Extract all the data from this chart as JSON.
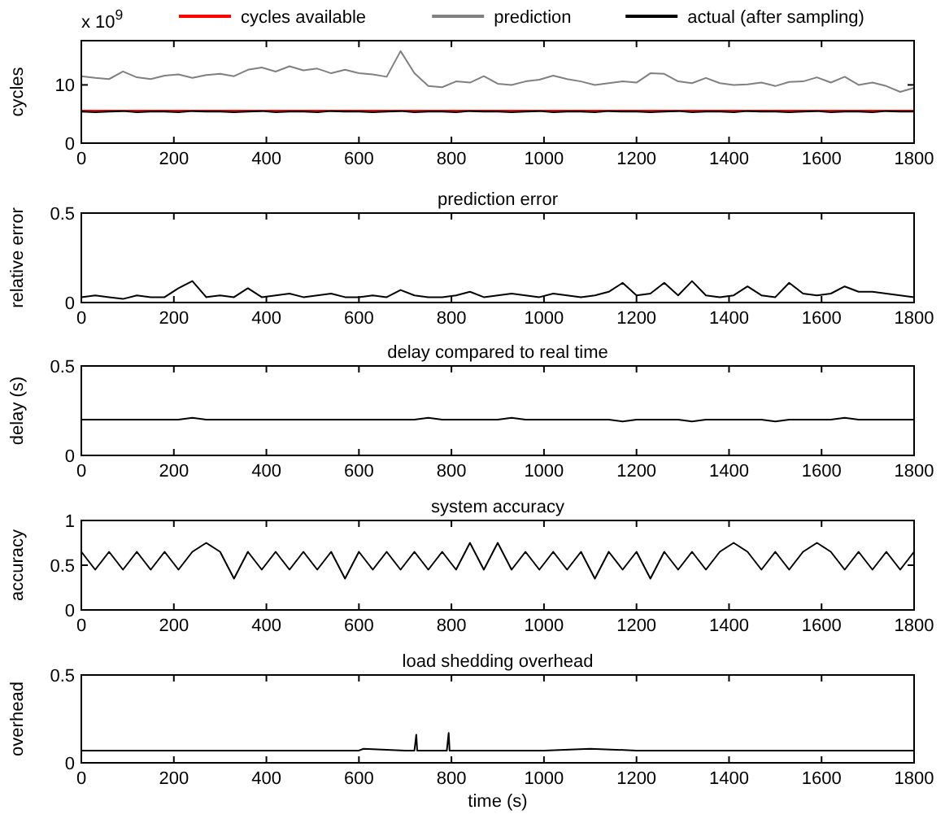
{
  "chart_data": [
    {
      "type": "line",
      "ylabel": "cycles",
      "annotations": [
        "x 10$^{9}$"
      ],
      "legend": "top",
      "xlim": [
        0,
        1800
      ],
      "xticks": [
        0,
        200,
        400,
        600,
        800,
        1000,
        1200,
        1400,
        1600,
        1800
      ],
      "ylim": [
        0,
        17.6
      ],
      "yticks": [
        0,
        10
      ],
      "x": [
        0,
        30,
        60,
        90,
        120,
        150,
        180,
        210,
        240,
        270,
        300,
        330,
        360,
        390,
        420,
        450,
        480,
        510,
        540,
        570,
        600,
        630,
        660,
        690,
        720,
        750,
        780,
        810,
        840,
        870,
        900,
        930,
        960,
        990,
        1020,
        1050,
        1080,
        1110,
        1140,
        1170,
        1200,
        1230,
        1260,
        1290,
        1320,
        1350,
        1380,
        1410,
        1440,
        1470,
        1500,
        1530,
        1560,
        1590,
        1620,
        1650,
        1680,
        1710,
        1740,
        1770,
        1800
      ],
      "series": [
        {
          "name": "cycles available",
          "color": "#ff0000",
          "x": [
            0,
            1800
          ],
          "values": [
            5.6,
            5.6
          ]
        },
        {
          "name": "prediction",
          "color": "#808080",
          "values": [
            11.5,
            11.2,
            11.0,
            12.3,
            11.3,
            11.0,
            11.6,
            11.8,
            11.2,
            11.7,
            11.9,
            11.5,
            12.6,
            13.0,
            12.3,
            13.2,
            12.5,
            12.8,
            12.0,
            12.6,
            12.0,
            11.8,
            11.4,
            15.8,
            12.0,
            9.8,
            9.6,
            10.6,
            10.4,
            11.5,
            10.2,
            10.0,
            10.6,
            10.9,
            11.6,
            11.0,
            10.6,
            10.0,
            10.3,
            10.6,
            10.4,
            12.0,
            11.9,
            10.6,
            10.3,
            11.2,
            10.3,
            10.0,
            10.1,
            10.4,
            9.8,
            10.5,
            10.6,
            11.3,
            10.4,
            11.4,
            10.0,
            10.4,
            9.8,
            8.8,
            9.5
          ]
        },
        {
          "name": "actual (after sampling)",
          "color": "#000000",
          "values": [
            5.4,
            5.3,
            5.4,
            5.5,
            5.3,
            5.4,
            5.4,
            5.3,
            5.5,
            5.4,
            5.4,
            5.3,
            5.4,
            5.5,
            5.3,
            5.4,
            5.4,
            5.3,
            5.5,
            5.4,
            5.4,
            5.3,
            5.4,
            5.5,
            5.3,
            5.4,
            5.4,
            5.3,
            5.5,
            5.4,
            5.4,
            5.3,
            5.4,
            5.5,
            5.3,
            5.4,
            5.4,
            5.3,
            5.5,
            5.4,
            5.4,
            5.3,
            5.4,
            5.5,
            5.3,
            5.4,
            5.4,
            5.3,
            5.5,
            5.4,
            5.4,
            5.3,
            5.4,
            5.5,
            5.3,
            5.4,
            5.4,
            5.3,
            5.5,
            5.4,
            5.4
          ]
        }
      ]
    },
    {
      "type": "line",
      "title": "prediction error",
      "ylabel": "relative error",
      "xlim": [
        0,
        1800
      ],
      "xticks": [
        0,
        200,
        400,
        600,
        800,
        1000,
        1200,
        1400,
        1600,
        1800
      ],
      "ylim": [
        0,
        0.5
      ],
      "yticks": [
        0,
        0.5
      ],
      "x": [
        0,
        30,
        60,
        90,
        120,
        150,
        180,
        210,
        240,
        270,
        300,
        330,
        360,
        390,
        420,
        450,
        480,
        510,
        540,
        570,
        600,
        630,
        660,
        690,
        720,
        750,
        780,
        810,
        840,
        870,
        900,
        930,
        960,
        990,
        1020,
        1050,
        1080,
        1110,
        1140,
        1170,
        1200,
        1230,
        1260,
        1290,
        1320,
        1350,
        1380,
        1410,
        1440,
        1470,
        1500,
        1530,
        1560,
        1590,
        1620,
        1650,
        1680,
        1710,
        1740,
        1770,
        1800
      ],
      "series": [
        {
          "color": "#000000",
          "values": [
            0.03,
            0.04,
            0.03,
            0.02,
            0.04,
            0.03,
            0.03,
            0.08,
            0.12,
            0.03,
            0.04,
            0.03,
            0.08,
            0.03,
            0.04,
            0.05,
            0.03,
            0.04,
            0.05,
            0.03,
            0.03,
            0.04,
            0.03,
            0.07,
            0.04,
            0.03,
            0.03,
            0.04,
            0.06,
            0.03,
            0.04,
            0.05,
            0.04,
            0.03,
            0.05,
            0.04,
            0.03,
            0.04,
            0.06,
            0.11,
            0.04,
            0.05,
            0.11,
            0.04,
            0.12,
            0.04,
            0.03,
            0.04,
            0.09,
            0.04,
            0.03,
            0.11,
            0.05,
            0.04,
            0.05,
            0.09,
            0.06,
            0.06,
            0.05,
            0.04,
            0.03
          ]
        }
      ]
    },
    {
      "type": "line",
      "title": "delay compared to real time",
      "ylabel": "delay (s)",
      "xlim": [
        0,
        1800
      ],
      "xticks": [
        0,
        200,
        400,
        600,
        800,
        1000,
        1200,
        1400,
        1600,
        1800
      ],
      "ylim": [
        0,
        0.5
      ],
      "yticks": [
        0,
        0.5
      ],
      "x": [
        0,
        30,
        60,
        90,
        120,
        150,
        180,
        210,
        240,
        270,
        300,
        330,
        360,
        390,
        420,
        450,
        480,
        510,
        540,
        570,
        600,
        630,
        660,
        690,
        720,
        750,
        780,
        810,
        840,
        870,
        900,
        930,
        960,
        990,
        1020,
        1050,
        1080,
        1110,
        1140,
        1170,
        1200,
        1230,
        1260,
        1290,
        1320,
        1350,
        1380,
        1410,
        1440,
        1470,
        1500,
        1530,
        1560,
        1590,
        1620,
        1650,
        1680,
        1710,
        1740,
        1770,
        1800
      ],
      "series": [
        {
          "color": "#000000",
          "values": [
            0.2,
            0.2,
            0.2,
            0.2,
            0.2,
            0.2,
            0.2,
            0.2,
            0.21,
            0.2,
            0.2,
            0.2,
            0.2,
            0.2,
            0.2,
            0.2,
            0.2,
            0.2,
            0.2,
            0.2,
            0.2,
            0.2,
            0.2,
            0.2,
            0.2,
            0.21,
            0.2,
            0.2,
            0.2,
            0.2,
            0.2,
            0.21,
            0.2,
            0.2,
            0.2,
            0.2,
            0.2,
            0.2,
            0.2,
            0.19,
            0.2,
            0.2,
            0.2,
            0.2,
            0.19,
            0.2,
            0.2,
            0.2,
            0.2,
            0.2,
            0.19,
            0.2,
            0.2,
            0.2,
            0.2,
            0.21,
            0.2,
            0.2,
            0.2,
            0.2,
            0.2
          ]
        }
      ]
    },
    {
      "type": "line",
      "title": "system accuracy",
      "ylabel": "accuracy",
      "xlim": [
        0,
        1800
      ],
      "xticks": [
        0,
        200,
        400,
        600,
        800,
        1000,
        1200,
        1400,
        1600,
        1800
      ],
      "ylim": [
        0,
        1
      ],
      "yticks": [
        0,
        0.5,
        1
      ],
      "x": [
        0,
        30,
        60,
        90,
        120,
        150,
        180,
        210,
        240,
        270,
        300,
        330,
        360,
        390,
        420,
        450,
        480,
        510,
        540,
        570,
        600,
        630,
        660,
        690,
        720,
        750,
        780,
        810,
        840,
        870,
        900,
        930,
        960,
        990,
        1020,
        1050,
        1080,
        1110,
        1140,
        1170,
        1200,
        1230,
        1260,
        1290,
        1320,
        1350,
        1380,
        1410,
        1440,
        1470,
        1500,
        1530,
        1560,
        1590,
        1620,
        1650,
        1680,
        1710,
        1740,
        1770,
        1800
      ],
      "series": [
        {
          "color": "#000000",
          "values": [
            0.65,
            0.45,
            0.65,
            0.45,
            0.65,
            0.45,
            0.65,
            0.45,
            0.65,
            0.75,
            0.65,
            0.35,
            0.65,
            0.45,
            0.65,
            0.45,
            0.65,
            0.45,
            0.65,
            0.35,
            0.65,
            0.45,
            0.65,
            0.45,
            0.65,
            0.45,
            0.65,
            0.45,
            0.75,
            0.45,
            0.75,
            0.45,
            0.65,
            0.45,
            0.65,
            0.45,
            0.65,
            0.35,
            0.65,
            0.45,
            0.65,
            0.35,
            0.65,
            0.45,
            0.65,
            0.45,
            0.65,
            0.75,
            0.65,
            0.45,
            0.65,
            0.45,
            0.65,
            0.75,
            0.65,
            0.45,
            0.65,
            0.45,
            0.65,
            0.45,
            0.65
          ]
        }
      ]
    },
    {
      "type": "line",
      "title": "load shedding overhead",
      "xlabel": "time (s)",
      "ylabel": "overhead",
      "xlim": [
        0,
        1800
      ],
      "xticks": [
        0,
        200,
        400,
        600,
        800,
        1000,
        1200,
        1400,
        1600,
        1800
      ],
      "ylim": [
        0,
        0.5
      ],
      "yticks": [
        0,
        0.5
      ],
      "x": [
        0,
        100,
        200,
        300,
        400,
        500,
        600,
        610,
        700,
        720,
        724,
        726,
        730,
        790,
        794,
        796,
        800,
        900,
        1000,
        1100,
        1200,
        1300,
        1400,
        1500,
        1600,
        1700,
        1800
      ],
      "series": [
        {
          "color": "#000000",
          "values": [
            0.07,
            0.07,
            0.07,
            0.07,
            0.07,
            0.07,
            0.07,
            0.08,
            0.07,
            0.07,
            0.16,
            0.07,
            0.07,
            0.07,
            0.17,
            0.07,
            0.07,
            0.07,
            0.07,
            0.08,
            0.07,
            0.07,
            0.07,
            0.07,
            0.07,
            0.07,
            0.07
          ]
        }
      ]
    }
  ]
}
